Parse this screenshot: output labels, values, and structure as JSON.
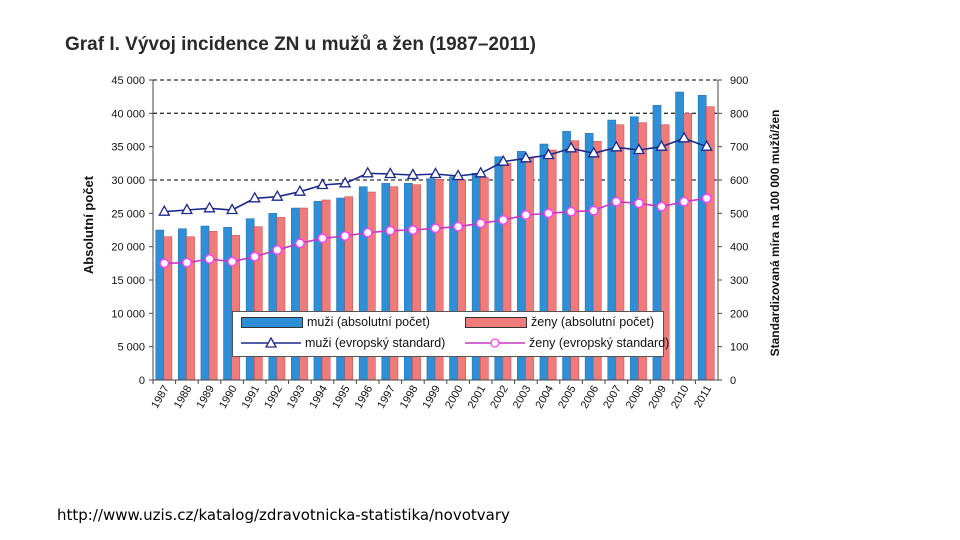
{
  "title": "Graf I. Vývoj incidence ZN u mužů a žen (1987–2011)",
  "source": "http://www.uzis.cz/katalog/zdravotnicka-statistika/novotvary",
  "colors": {
    "men_bar": "#2e8fd6",
    "women_bar": "#ef7b7b",
    "men_line": "#1d2a8a",
    "women_line": "#c43ac4",
    "women_marker": "#ff3fff"
  },
  "chart_data": {
    "type": "bar+line",
    "title": "Graf I. Vývoj incidence ZN u mužů a žen (1987–2011)",
    "xlabel": "",
    "ylabel": "Absolutní počet",
    "y2label": "Standardizovaná míra na 100 000 mužů/žen",
    "ylim": [
      0,
      45000
    ],
    "y2lim": [
      0,
      900
    ],
    "yticks": [
      "0",
      "5 000",
      "10 000",
      "15 000",
      "20 000",
      "25 000",
      "30 000",
      "35 000",
      "40 000",
      "45 000"
    ],
    "y2ticks": [
      "0",
      "100",
      "200",
      "300",
      "400",
      "500",
      "600",
      "700",
      "800",
      "900"
    ],
    "categories": [
      "1987",
      "1988",
      "1989",
      "1990",
      "1991",
      "1992",
      "1993",
      "1994",
      "1995",
      "1996",
      "1997",
      "1998",
      "1999",
      "2000",
      "2001",
      "2002",
      "2003",
      "2004",
      "2005",
      "2006",
      "2007",
      "2008",
      "2009",
      "2010",
      "2011"
    ],
    "series": [
      {
        "name": "muži (absolutní počet)",
        "kind": "bar",
        "axis": "left",
        "values": [
          22500,
          22700,
          23100,
          22900,
          24200,
          25000,
          25800,
          26800,
          27300,
          29000,
          29500,
          29500,
          30200,
          30500,
          31000,
          33500,
          34300,
          35400,
          37300,
          37000,
          39000,
          39500,
          41200,
          43200,
          42700
        ]
      },
      {
        "name": "ženy (absolutní počet)",
        "kind": "bar",
        "axis": "left",
        "values": [
          21500,
          21500,
          22300,
          21700,
          23000,
          24400,
          25800,
          27000,
          27500,
          28200,
          29000,
          29300,
          30100,
          30000,
          30400,
          32500,
          33300,
          34500,
          35900,
          35800,
          38300,
          38600,
          38300,
          40000,
          41000
        ]
      },
      {
        "name": "muži (evropský standard)",
        "kind": "line",
        "axis": "right",
        "values": [
          505,
          510,
          515,
          510,
          545,
          550,
          565,
          585,
          590,
          620,
          618,
          615,
          618,
          612,
          620,
          655,
          665,
          675,
          695,
          680,
          698,
          690,
          700,
          725,
          700
        ]
      },
      {
        "name": "ženy (evropský standard)",
        "kind": "line",
        "axis": "right",
        "values": [
          350,
          352,
          363,
          355,
          370,
          390,
          410,
          425,
          432,
          442,
          448,
          450,
          455,
          460,
          470,
          480,
          495,
          500,
          505,
          508,
          535,
          530,
          520,
          535,
          545
        ]
      }
    ],
    "legend": "bottom-center inside plot",
    "grid": "dashed at 30 000, 40 000, 45 000"
  }
}
